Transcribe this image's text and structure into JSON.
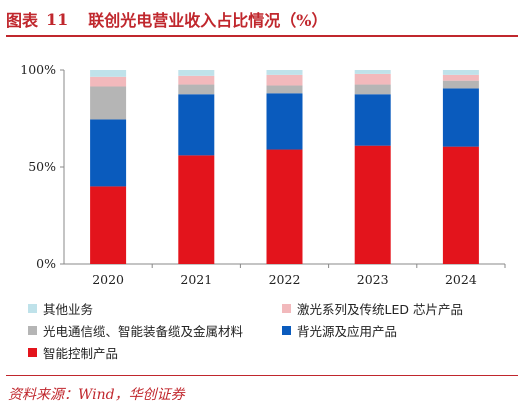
{
  "header": {
    "fig_label": "图表",
    "fig_number": "11",
    "title": "联创光电营业收入占比情况（%）"
  },
  "footer": {
    "source": "资料来源：Wind，华创证券"
  },
  "colors": {
    "accent": "#c0272d"
  },
  "chart_data": {
    "type": "bar",
    "stacked": true,
    "title": "联创光电营业收入占比情况（%）",
    "xlabel": "",
    "ylabel": "",
    "ylim": [
      0,
      100
    ],
    "yticks": [
      "0%",
      "50%",
      "100%"
    ],
    "grid": false,
    "legend_position": "bottom",
    "categories": [
      "2020",
      "2021",
      "2022",
      "2023",
      "2024"
    ],
    "series": [
      {
        "name": "智能控制产品",
        "color": "#e3141c",
        "values": [
          40,
          56,
          59,
          61,
          60.5
        ]
      },
      {
        "name": "背光源及应用产品",
        "color": "#0a5bbd",
        "values": [
          34.5,
          31.5,
          29,
          26.5,
          30
        ]
      },
      {
        "name": "光电通信缆、智能装备缆及金属材料",
        "color": "#b5b5b5",
        "values": [
          17,
          5,
          4,
          5,
          4
        ]
      },
      {
        "name": "激光系列及传统LED 芯片产品",
        "color": "#f2b9bc",
        "values": [
          5,
          4.5,
          5.5,
          5.5,
          3
        ]
      },
      {
        "name": "其他业务",
        "color": "#bfe2ea",
        "values": [
          3.5,
          3,
          2.5,
          2,
          2.5
        ]
      }
    ]
  }
}
